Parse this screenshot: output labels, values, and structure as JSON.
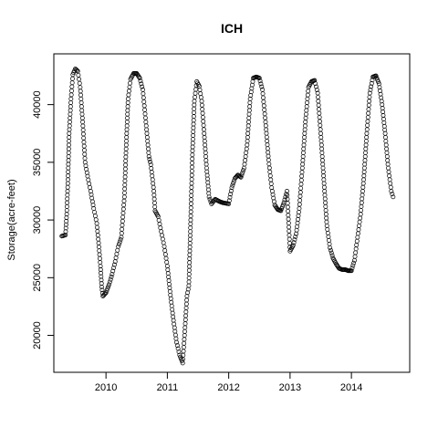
{
  "chart_data": {
    "type": "scatter",
    "title": "ICH",
    "xlabel": "",
    "ylabel": "Storage(acre-feet)",
    "marker": "open-circle",
    "grid": false,
    "xlim": [
      2009.15,
      2014.95
    ],
    "ylim": [
      16800,
      44400
    ],
    "x_ticks": [
      2010,
      2011,
      2012,
      2013,
      2014
    ],
    "x_tick_labels": [
      "2010",
      "2011",
      "2012",
      "2013",
      "2014"
    ],
    "y_ticks": [
      20000,
      25000,
      30000,
      35000,
      40000
    ],
    "y_tick_labels": [
      "20000",
      "25000",
      "30000",
      "35000",
      "40000"
    ],
    "trace": [
      [
        2009.28,
        28600
      ],
      [
        2009.34,
        28700
      ],
      [
        2009.36,
        30500
      ],
      [
        2009.38,
        33500
      ],
      [
        2009.4,
        37500
      ],
      [
        2009.43,
        40500
      ],
      [
        2009.46,
        42600
      ],
      [
        2009.5,
        43100
      ],
      [
        2009.54,
        42900
      ],
      [
        2009.58,
        41500
      ],
      [
        2009.62,
        38500
      ],
      [
        2009.66,
        35000
      ],
      [
        2009.7,
        33800
      ],
      [
        2009.75,
        32500
      ],
      [
        2009.8,
        31000
      ],
      [
        2009.85,
        29700
      ],
      [
        2009.88,
        28000
      ],
      [
        2009.91,
        26000
      ],
      [
        2009.93,
        24200
      ],
      [
        2009.95,
        23400
      ],
      [
        2010.0,
        23700
      ],
      [
        2010.05,
        24400
      ],
      [
        2010.1,
        25300
      ],
      [
        2010.15,
        26400
      ],
      [
        2010.2,
        27700
      ],
      [
        2010.25,
        28500
      ],
      [
        2010.3,
        32000
      ],
      [
        2010.33,
        36500
      ],
      [
        2010.36,
        40500
      ],
      [
        2010.4,
        42200
      ],
      [
        2010.45,
        42700
      ],
      [
        2010.5,
        42700
      ],
      [
        2010.55,
        42300
      ],
      [
        2010.6,
        41300
      ],
      [
        2010.65,
        38500
      ],
      [
        2010.7,
        35500
      ],
      [
        2010.73,
        34800
      ],
      [
        2010.76,
        33500
      ],
      [
        2010.78,
        32500
      ],
      [
        2010.8,
        30800
      ],
      [
        2010.85,
        30300
      ],
      [
        2010.9,
        29000
      ],
      [
        2010.95,
        27700
      ],
      [
        2011.0,
        26000
      ],
      [
        2011.05,
        23500
      ],
      [
        2011.1,
        21300
      ],
      [
        2011.15,
        19400
      ],
      [
        2011.2,
        18300
      ],
      [
        2011.25,
        17600
      ],
      [
        2011.28,
        20000
      ],
      [
        2011.32,
        23400
      ],
      [
        2011.35,
        24300
      ],
      [
        2011.38,
        30000
      ],
      [
        2011.41,
        36000
      ],
      [
        2011.44,
        40300
      ],
      [
        2011.48,
        42000
      ],
      [
        2011.52,
        41600
      ],
      [
        2011.56,
        40300
      ],
      [
        2011.6,
        37500
      ],
      [
        2011.64,
        34500
      ],
      [
        2011.68,
        32000
      ],
      [
        2011.72,
        31400
      ],
      [
        2011.78,
        31800
      ],
      [
        2011.85,
        31600
      ],
      [
        2011.9,
        31500
      ],
      [
        2012.0,
        31400
      ],
      [
        2012.05,
        32800
      ],
      [
        2012.1,
        33600
      ],
      [
        2012.15,
        33900
      ],
      [
        2012.2,
        33700
      ],
      [
        2012.25,
        34500
      ],
      [
        2012.3,
        36500
      ],
      [
        2012.35,
        40500
      ],
      [
        2012.4,
        42300
      ],
      [
        2012.45,
        42400
      ],
      [
        2012.5,
        42300
      ],
      [
        2012.55,
        41300
      ],
      [
        2012.6,
        38500
      ],
      [
        2012.65,
        35200
      ],
      [
        2012.7,
        32800
      ],
      [
        2012.75,
        31300
      ],
      [
        2012.8,
        30900
      ],
      [
        2012.85,
        30800
      ],
      [
        2012.9,
        31500
      ],
      [
        2012.95,
        32500
      ],
      [
        2013.0,
        27300
      ],
      [
        2013.05,
        27800
      ],
      [
        2013.1,
        28800
      ],
      [
        2013.15,
        31000
      ],
      [
        2013.2,
        34500
      ],
      [
        2013.25,
        38500
      ],
      [
        2013.3,
        41500
      ],
      [
        2013.35,
        42000
      ],
      [
        2013.4,
        42100
      ],
      [
        2013.45,
        41000
      ],
      [
        2013.5,
        37500
      ],
      [
        2013.55,
        33500
      ],
      [
        2013.6,
        29500
      ],
      [
        2013.65,
        27600
      ],
      [
        2013.7,
        26700
      ],
      [
        2013.75,
        26200
      ],
      [
        2013.8,
        25800
      ],
      [
        2013.85,
        25700
      ],
      [
        2013.9,
        25700
      ],
      [
        2013.95,
        25600
      ],
      [
        2014.0,
        25600
      ],
      [
        2014.05,
        26500
      ],
      [
        2014.1,
        28500
      ],
      [
        2014.15,
        30500
      ],
      [
        2014.2,
        33500
      ],
      [
        2014.25,
        37500
      ],
      [
        2014.3,
        41000
      ],
      [
        2014.35,
        42400
      ],
      [
        2014.4,
        42500
      ],
      [
        2014.45,
        41800
      ],
      [
        2014.5,
        40000
      ],
      [
        2014.55,
        37500
      ],
      [
        2014.6,
        34500
      ],
      [
        2014.65,
        32500
      ],
      [
        2014.68,
        32000
      ]
    ]
  }
}
